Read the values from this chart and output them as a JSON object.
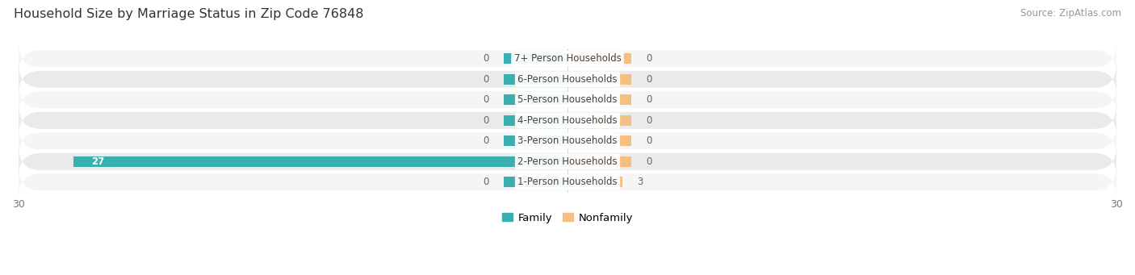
{
  "title": "Household Size by Marriage Status in Zip Code 76848",
  "source": "Source: ZipAtlas.com",
  "categories": [
    "7+ Person Households",
    "6-Person Households",
    "5-Person Households",
    "4-Person Households",
    "3-Person Households",
    "2-Person Households",
    "1-Person Households"
  ],
  "family_values": [
    0,
    0,
    0,
    0,
    0,
    27,
    0
  ],
  "nonfamily_values": [
    0,
    0,
    0,
    0,
    0,
    0,
    3
  ],
  "family_color": "#3AAFB0",
  "nonfamily_color": "#F5BF82",
  "row_bg_light": "#F5F5F5",
  "row_bg_dark": "#EAEAEA",
  "xlim": [
    -30,
    30
  ],
  "xticks": [
    -30,
    30
  ],
  "bar_height": 0.52,
  "stub_size": 3.5,
  "title_fontsize": 11.5,
  "source_fontsize": 8.5,
  "tick_fontsize": 9,
  "legend_fontsize": 9.5,
  "value_fontsize": 8.5,
  "category_fontsize": 8.5,
  "fig_width": 14.06,
  "fig_height": 3.41,
  "background_color": "#FFFFFF"
}
